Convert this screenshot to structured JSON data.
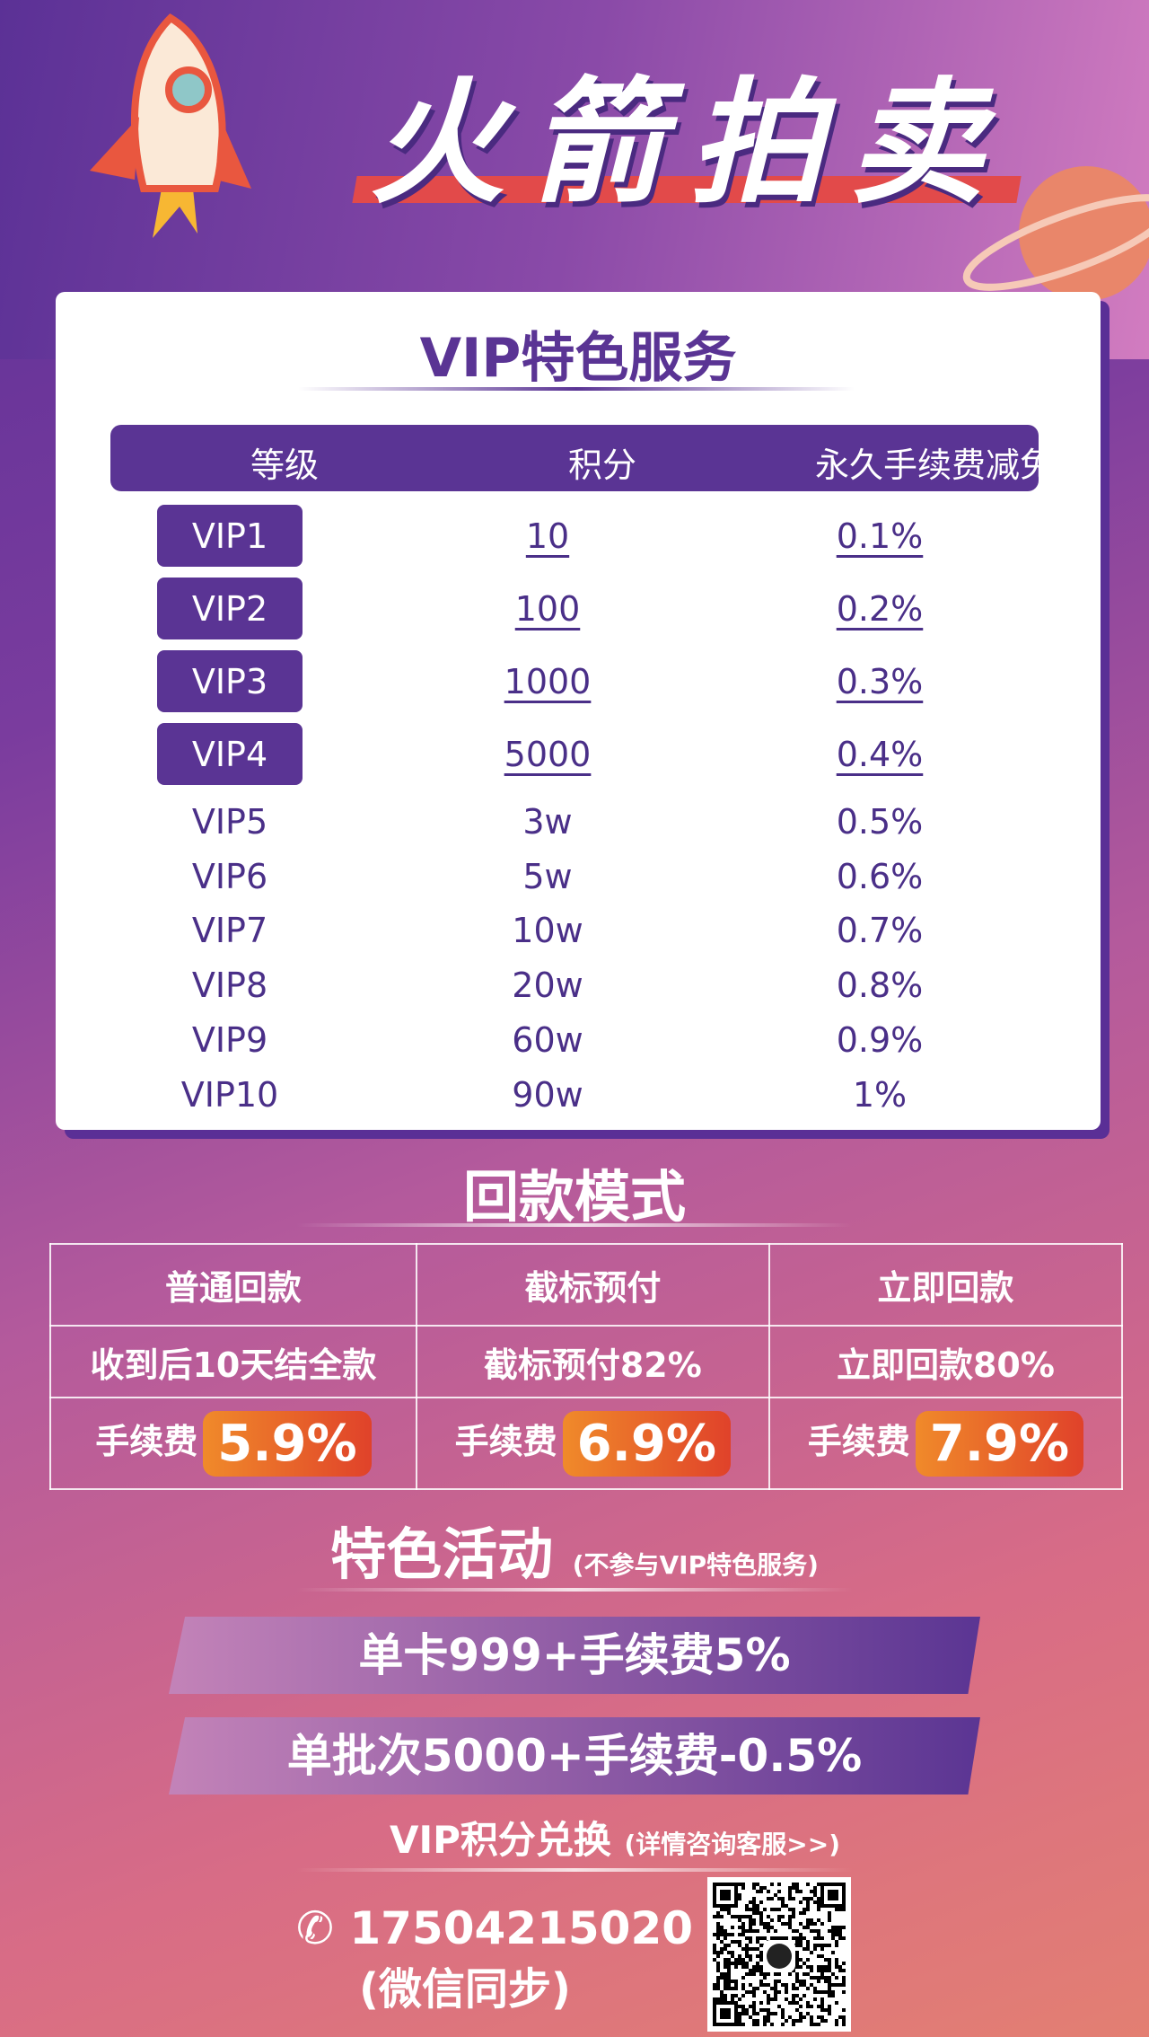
{
  "title": "火箭拍卖",
  "vip": {
    "title": "VIP特色服务",
    "headers": [
      "等级",
      "积分",
      "永久手续费减免"
    ],
    "rows": [
      {
        "level": "VIP1",
        "points": "10",
        "discount": "0.1%",
        "highlight": true
      },
      {
        "level": "VIP2",
        "points": "100",
        "discount": "0.2%",
        "highlight": true
      },
      {
        "level": "VIP3",
        "points": "1000",
        "discount": "0.3%",
        "highlight": true
      },
      {
        "level": "VIP4",
        "points": "5000",
        "discount": "0.4%",
        "highlight": true
      },
      {
        "level": "VIP5",
        "points": "3w",
        "discount": "0.5%"
      },
      {
        "level": "VIP6",
        "points": "5w",
        "discount": "0.6%"
      },
      {
        "level": "VIP7",
        "points": "10w",
        "discount": "0.7%"
      },
      {
        "level": "VIP8",
        "points": "20w",
        "discount": "0.8%"
      },
      {
        "level": "VIP9",
        "points": "60w",
        "discount": "0.9%"
      },
      {
        "level": "VIP10",
        "points": "90w",
        "discount": "1%"
      }
    ]
  },
  "payback": {
    "title": "回款模式",
    "columns": [
      {
        "name": "普通回款",
        "desc": "收到后10天结全款",
        "fee_label": "手续费",
        "fee": "5.9%"
      },
      {
        "name": "截标预付",
        "desc": "截标预付82%",
        "fee_label": "手续费",
        "fee": "6.9%"
      },
      {
        "name": "立即回款",
        "desc": "立即回款80%",
        "fee_label": "手续费",
        "fee": "7.9%"
      }
    ]
  },
  "activity": {
    "title": "特色活动",
    "note": "(不参与VIP特色服务)",
    "banners": [
      "单卡999+手续费5%",
      "单批次5000+手续费-0.5%"
    ],
    "exchange": "VIP积分兑换",
    "exchange_note": "(详情咨询客服>>)"
  },
  "contact": {
    "phone": "17504215020",
    "note": "(微信同步)",
    "icon": "phone-icon"
  },
  "colors": {
    "primary": "#5a3494",
    "fee": "#e0422a"
  }
}
